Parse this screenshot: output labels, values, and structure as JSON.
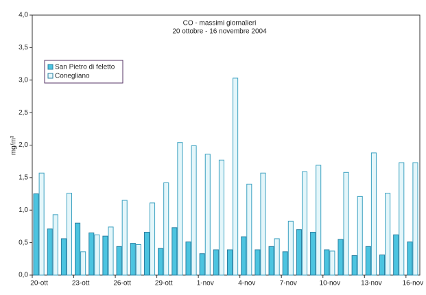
{
  "chart_data": {
    "type": "bar",
    "title": "CO - massimi giornalieri",
    "subtitle": "20 ottobre - 16 novembre 2004",
    "y_label": "mg/m³",
    "categories": [
      "20-ott",
      null,
      null,
      "23-ott",
      null,
      null,
      "26-ott",
      null,
      null,
      "29-ott",
      null,
      null,
      "1-nov",
      null,
      null,
      "4-nov",
      null,
      null,
      "7-nov",
      null,
      null,
      "10-nov",
      null,
      null,
      "13-nov",
      null,
      null,
      "16-nov"
    ],
    "series": [
      {
        "name": "San Pietro di feletto",
        "color": "#4cc4e0",
        "values": [
          1.25,
          0.71,
          0.56,
          0.8,
          0.65,
          0.6,
          0.44,
          0.49,
          0.66,
          0.41,
          0.73,
          0.51,
          0.33,
          0.39,
          0.39,
          0.59,
          0.39,
          0.44,
          0.36,
          0.7,
          0.66,
          0.39,
          0.55,
          0.3,
          0.44,
          0.31,
          0.62,
          0.51
        ]
      },
      {
        "name": "Conegliano",
        "color": "#e4f6fa",
        "values": [
          1.57,
          0.93,
          1.26,
          0.36,
          0.62,
          0.74,
          1.15,
          0.47,
          1.11,
          1.42,
          2.04,
          1.99,
          1.86,
          1.77,
          3.03,
          1.4,
          1.57,
          0.56,
          0.83,
          1.59,
          1.69,
          0.37,
          1.58,
          1.21,
          1.88,
          1.26,
          1.73,
          1.73
        ]
      }
    ],
    "ylim": [
      0,
      4
    ],
    "yticks": [
      {
        "value": 0,
        "label": "0,0"
      },
      {
        "value": 0.5,
        "label": "0,5"
      },
      {
        "value": 1,
        "label": "1,0"
      },
      {
        "value": 1.5,
        "label": "1,5"
      },
      {
        "value": 2,
        "label": "2,0"
      },
      {
        "value": 2.5,
        "label": "2,5"
      },
      {
        "value": 3,
        "label": "3,0"
      },
      {
        "value": 3.5,
        "label": "3,5"
      },
      {
        "value": 4,
        "label": "4,0"
      }
    ],
    "legend": "top-left"
  }
}
